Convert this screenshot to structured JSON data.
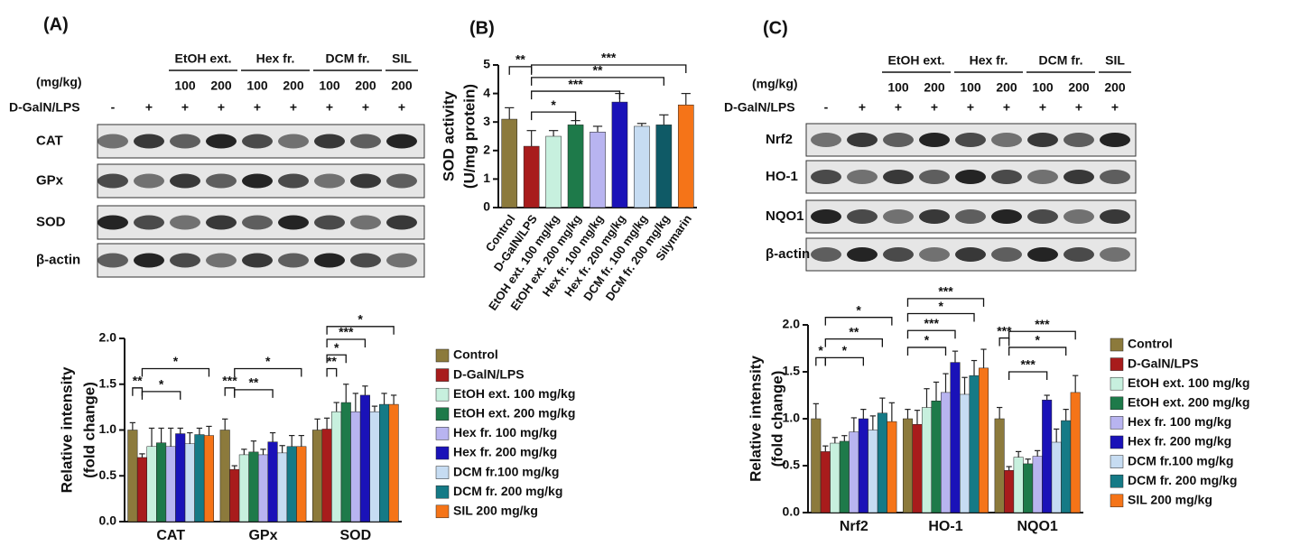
{
  "panel_labels": [
    "(A)",
    "(B)",
    "(C)"
  ],
  "blots": [
    {
      "groups": [
        "EtOH ext.",
        "Hex fr.",
        "DCM fr.",
        "SIL"
      ],
      "dose_label": "(mg/kg)",
      "doses": [
        100,
        200,
        100,
        200,
        100,
        200,
        200
      ],
      "treatment_label": "D-GalN/LPS",
      "treatment": [
        "-",
        "+",
        "+",
        "+",
        "+",
        "+",
        "+",
        "+",
        "+"
      ],
      "rows": [
        "CAT",
        "GPx",
        "SOD",
        "β-actin"
      ]
    },
    {
      "groups": [
        "EtOH ext.",
        "Hex fr.",
        "DCM fr.",
        "SIL"
      ],
      "dose_label": "(mg/kg)",
      "doses": [
        100,
        200,
        100,
        200,
        100,
        200,
        200
      ],
      "treatment_label": "D-GalN/LPS",
      "treatment": [
        "-",
        "+",
        "+",
        "+",
        "+",
        "+",
        "+",
        "+",
        "+"
      ],
      "rows": [
        "Nrf2",
        "HO-1",
        "NQO1",
        "β-actin"
      ]
    }
  ],
  "chart_data": [
    {
      "type": "bar",
      "ylabel": [
        "Relative intensity",
        "(fold change)"
      ],
      "categories": [
        "CAT",
        "GPx",
        "SOD"
      ],
      "ylim": [
        0,
        2
      ],
      "yticks": [
        {
          "value": 0,
          "label": "0.0"
        },
        0.5,
        {
          "value": 1,
          "label": "1.0"
        },
        1.5,
        {
          "value": 2,
          "label": "2.0"
        }
      ],
      "series": [
        {
          "name": "Control",
          "color": "#8c7a3c",
          "values": [
            1.0,
            1.0,
            1.0
          ],
          "errors": [
            0.08,
            0.12,
            0.12
          ]
        },
        {
          "name": "D-GalN/LPS",
          "color": "#a81c1c",
          "values": [
            0.7,
            0.57,
            1.01
          ],
          "errors": [
            0.04,
            0.04,
            0.12
          ]
        },
        {
          "name": "EtOH ext. 100 mg/kg",
          "color": "#c7f0de",
          "values": [
            0.82,
            0.73,
            1.2
          ],
          "errors": [
            0.2,
            0.06,
            0.1
          ]
        },
        {
          "name": "EtOH ext. 200 mg/kg",
          "color": "#1e7a4a",
          "values": [
            0.86,
            0.76,
            1.3
          ],
          "errors": [
            0.16,
            0.12,
            0.2
          ]
        },
        {
          "name": "Hex fr. 100 mg/kg",
          "color": "#b8b4f0",
          "values": [
            0.82,
            0.73,
            1.2
          ],
          "errors": [
            0.2,
            0.06,
            0.2
          ]
        },
        {
          "name": "Hex fr. 200 mg/kg",
          "color": "#1a12b8",
          "values": [
            0.96,
            0.87,
            1.38
          ],
          "errors": [
            0.06,
            0.1,
            0.1
          ]
        },
        {
          "name": "DCM fr.100 mg/kg",
          "color": "#c6dcf2",
          "values": [
            0.85,
            0.75,
            1.2
          ],
          "errors": [
            0.12,
            0.08,
            0.06
          ]
        },
        {
          "name": "DCM fr. 200 mg/kg",
          "color": "#157a86",
          "values": [
            0.95,
            0.82,
            1.28
          ],
          "errors": [
            0.07,
            0.12,
            0.12
          ]
        },
        {
          "name": "SIL 200 mg/kg",
          "color": "#f57418",
          "values": [
            0.94,
            0.82,
            1.28
          ],
          "errors": [
            0.1,
            0.12,
            0.1
          ]
        }
      ],
      "annotations": [
        {
          "text": "**",
          "category": 0,
          "from": 0,
          "to": 1,
          "y": 1.46
        },
        {
          "text": "*",
          "category": 0,
          "from": 1,
          "to": 5,
          "y": 1.42
        },
        {
          "text": "*",
          "category": 0,
          "from": 1,
          "to": 8,
          "y": 1.67
        },
        {
          "text": "***",
          "category": 1,
          "from": 0,
          "to": 1,
          "y": 1.46
        },
        {
          "text": "**",
          "category": 1,
          "from": 1,
          "to": 5,
          "y": 1.44
        },
        {
          "text": "*",
          "category": 1,
          "from": 1,
          "to": 8,
          "y": 1.67
        },
        {
          "text": "**",
          "category": 2,
          "from": 1,
          "to": 2,
          "y": 1.67
        },
        {
          "text": "*",
          "category": 2,
          "from": 1,
          "to": 3,
          "y": 1.82
        },
        {
          "text": "***",
          "category": 2,
          "from": 1,
          "to": 5,
          "y": 1.99
        },
        {
          "text": "*",
          "category": 2,
          "from": 1,
          "to": 8,
          "y": 2.13
        }
      ]
    },
    {
      "type": "bar",
      "ylabel": [
        "SOD activity",
        "(U/mg protein)"
      ],
      "categories": [
        "Control",
        "D-GalN/LPS",
        "EtOH ext. 100 mg/kg",
        "EtOH ext. 200 mg/kg",
        "Hex fr. 100 mg/kg",
        "Hex fr. 200 mg/kg",
        "DCM fr. 100 mg/kg",
        "DCM fr. 200 mg/kg",
        "Silymarin"
      ],
      "values": [
        3.1,
        2.15,
        2.5,
        2.9,
        2.65,
        3.7,
        2.85,
        2.9,
        3.6
      ],
      "errors": [
        0.4,
        0.55,
        0.2,
        0.15,
        0.2,
        0.3,
        0.1,
        0.35,
        0.4
      ],
      "colors": [
        "#8c7a3c",
        "#a81c1c",
        "#c7f0de",
        "#1e7a4a",
        "#b8b4f0",
        "#1a12b8",
        "#c6dcf2",
        "#0f5a66",
        "#f57418"
      ],
      "ylim": [
        0,
        5
      ],
      "yticks": [
        0,
        1,
        2,
        3,
        4,
        5
      ],
      "annotations": [
        {
          "text": "**",
          "from": 0,
          "to": 1,
          "y": 4.94
        },
        {
          "text": "***",
          "from": 1,
          "to": 8,
          "y": 5.0
        },
        {
          "text": "**",
          "from": 1,
          "to": 7,
          "y": 4.56
        },
        {
          "text": "***",
          "from": 1,
          "to": 5,
          "y": 4.08
        },
        {
          "text": "*",
          "from": 1,
          "to": 3,
          "y": 3.35
        }
      ]
    },
    {
      "type": "bar",
      "ylabel": [
        "Relative intensity",
        "(fold change)"
      ],
      "categories": [
        "Nrf2",
        "HO-1",
        "NQO1"
      ],
      "ylim": [
        0,
        2
      ],
      "yticks": [
        {
          "value": 0,
          "label": "0.0"
        },
        0.5,
        {
          "value": 1,
          "label": "1.0"
        },
        1.5,
        {
          "value": 2,
          "label": "2.0"
        }
      ],
      "series": [
        {
          "name": "Control",
          "color": "#8c7a3c",
          "values": [
            1.0,
            1.0,
            1.0
          ],
          "errors": [
            0.16,
            0.1,
            0.12
          ]
        },
        {
          "name": "D-GalN/LPS",
          "color": "#a81c1c",
          "values": [
            0.65,
            0.94,
            0.45
          ],
          "errors": [
            0.06,
            0.15,
            0.04
          ]
        },
        {
          "name": "EtOH ext. 100 mg/kg",
          "color": "#c7f0de",
          "values": [
            0.74,
            1.12,
            0.59
          ],
          "errors": [
            0.06,
            0.2,
            0.06
          ]
        },
        {
          "name": "EtOH ext. 200 mg/kg",
          "color": "#1e7a4a",
          "values": [
            0.76,
            1.19,
            0.52
          ],
          "errors": [
            0.06,
            0.2,
            0.05
          ]
        },
        {
          "name": "Hex fr. 100 mg/kg",
          "color": "#b8b4f0",
          "values": [
            0.86,
            1.28,
            0.6
          ],
          "errors": [
            0.15,
            0.2,
            0.06
          ]
        },
        {
          "name": "Hex fr. 200 mg/kg",
          "color": "#1a12b8",
          "values": [
            1.0,
            1.6,
            1.2
          ],
          "errors": [
            0.1,
            0.12,
            0.05
          ]
        },
        {
          "name": "DCM fr.100 mg/kg",
          "color": "#c6dcf2",
          "values": [
            0.88,
            1.26,
            0.75
          ],
          "errors": [
            0.15,
            0.18,
            0.14
          ]
        },
        {
          "name": "DCM fr. 200 mg/kg",
          "color": "#157a86",
          "values": [
            1.06,
            1.46,
            0.98
          ],
          "errors": [
            0.16,
            0.16,
            0.12
          ]
        },
        {
          "name": "SIL 200 mg/kg",
          "color": "#f57418",
          "values": [
            0.97,
            1.54,
            1.28
          ],
          "errors": [
            0.2,
            0.2,
            0.18
          ]
        }
      ],
      "annotations": [
        {
          "text": "*",
          "category": 0,
          "from": 0,
          "to": 1,
          "y": 1.65
        },
        {
          "text": "*",
          "category": 0,
          "from": 1,
          "to": 5,
          "y": 1.65
        },
        {
          "text": "**",
          "category": 0,
          "from": 1,
          "to": 7,
          "y": 1.85
        },
        {
          "text": "*",
          "category": 0,
          "from": 1,
          "to": 8,
          "y": 2.08
        },
        {
          "text": "*",
          "category": 1,
          "from": 0,
          "to": 4,
          "y": 1.76
        },
        {
          "text": "***",
          "category": 1,
          "from": 0,
          "to": 5,
          "y": 1.94
        },
        {
          "text": "*",
          "category": 1,
          "from": 0,
          "to": 7,
          "y": 2.12
        },
        {
          "text": "***",
          "category": 1,
          "from": 0,
          "to": 8,
          "y": 2.28
        },
        {
          "text": "***",
          "category": 2,
          "from": 0,
          "to": 1,
          "y": 1.86
        },
        {
          "text": "***",
          "category": 2,
          "from": 1,
          "to": 5,
          "y": 1.5
        },
        {
          "text": "*",
          "category": 2,
          "from": 1,
          "to": 7,
          "y": 1.76
        },
        {
          "text": "***",
          "category": 2,
          "from": 1,
          "to": 8,
          "y": 1.93
        }
      ]
    }
  ]
}
